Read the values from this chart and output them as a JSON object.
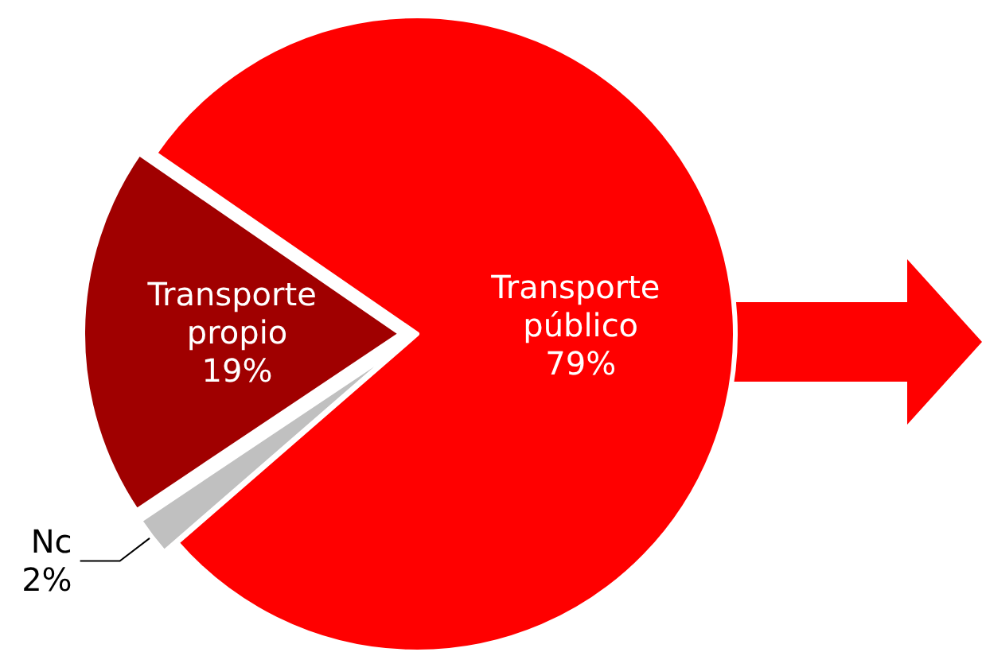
{
  "chart_data": {
    "type": "pie",
    "categories": [
      "Transporte público",
      "Transporte propio",
      "Nc"
    ],
    "values": [
      79,
      19,
      2
    ],
    "value_labels": [
      "79%",
      "19%",
      "2%"
    ],
    "colors": [
      "#ff0000",
      "#a00000",
      "#c0c0c0"
    ],
    "legend": false
  }
}
